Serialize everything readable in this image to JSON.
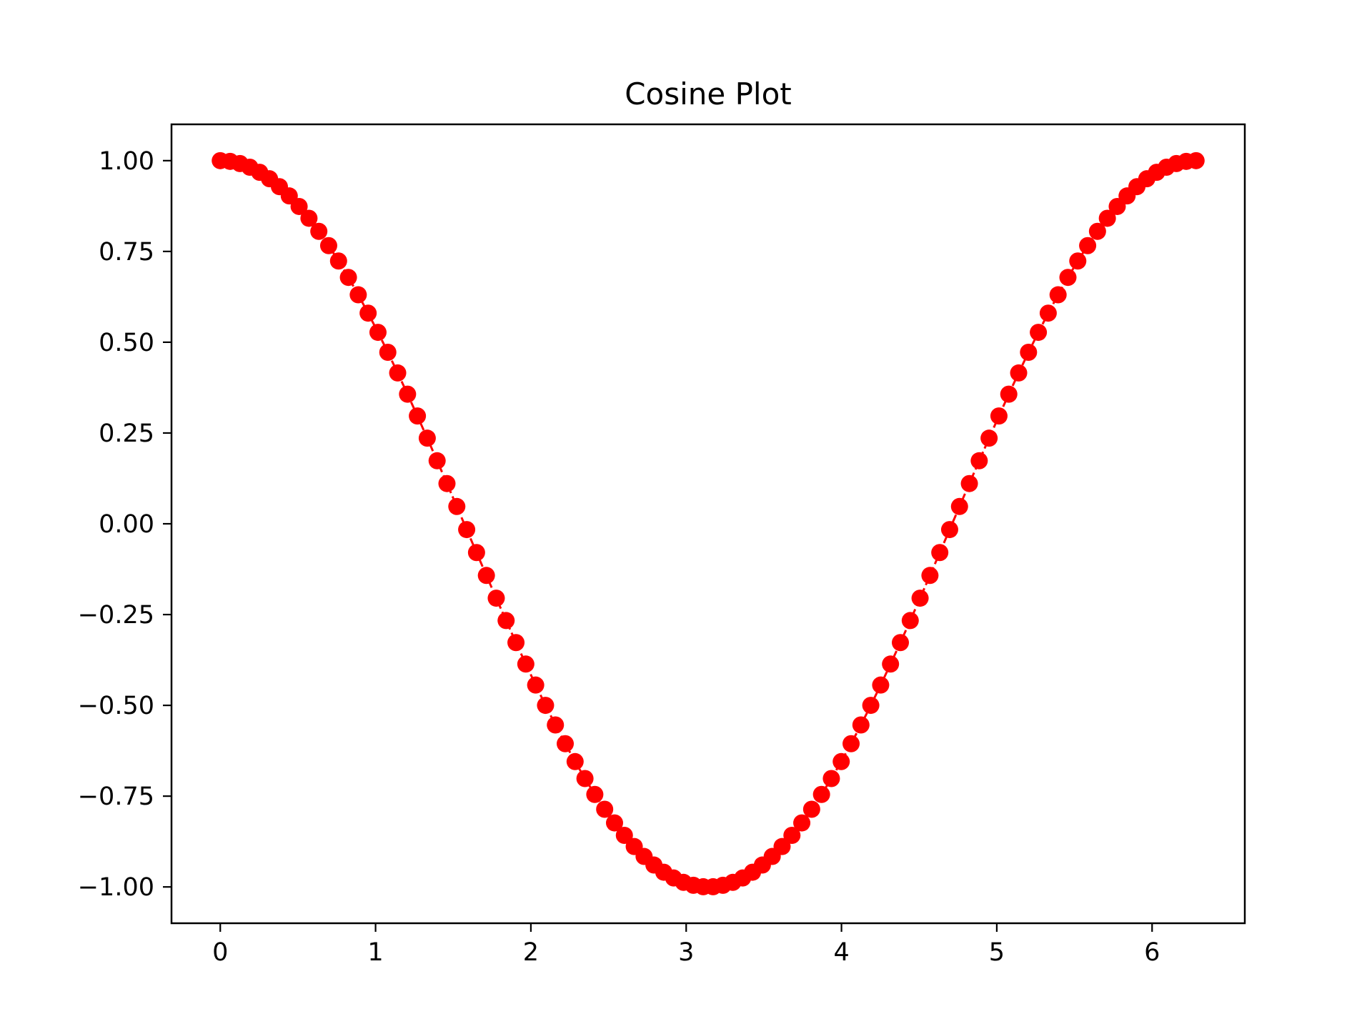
{
  "chart_data": {
    "type": "line",
    "title": "Cosine Plot",
    "xlabel": "",
    "ylabel": "",
    "xlim": [
      -0.314,
      6.597
    ],
    "ylim": [
      -1.1,
      1.1
    ],
    "x_ticks": [
      0,
      1,
      2,
      3,
      4,
      5,
      6
    ],
    "x_tick_labels": [
      "0",
      "1",
      "2",
      "3",
      "4",
      "5",
      "6"
    ],
    "y_ticks": [
      1.0,
      0.75,
      0.5,
      0.25,
      0.0,
      -0.25,
      -0.5,
      -0.75,
      -1.0
    ],
    "y_tick_labels": [
      "1.00",
      "0.75",
      "0.50",
      "0.25",
      "0.00",
      "−0.25",
      "−0.50",
      "−0.75",
      "−1.00"
    ],
    "grid": false,
    "legend": null,
    "series": [
      {
        "color": "#ff0000",
        "marker": "circle",
        "line_style": "dashed",
        "x": [
          0.0,
          0.0635,
          0.1269,
          0.1904,
          0.2539,
          0.3173,
          0.3808,
          0.4443,
          0.5077,
          0.5712,
          0.6347,
          0.6981,
          0.7616,
          0.8251,
          0.8885,
          0.952,
          1.0155,
          1.0789,
          1.1424,
          1.2059,
          1.2693,
          1.3328,
          1.3963,
          1.4597,
          1.5232,
          1.5867,
          1.6501,
          1.7136,
          1.7771,
          1.8405,
          1.904,
          1.9675,
          2.0309,
          2.0944,
          2.1579,
          2.2213,
          2.2848,
          2.3483,
          2.4117,
          2.4752,
          2.5387,
          2.6021,
          2.6656,
          2.7291,
          2.7925,
          2.856,
          2.9195,
          2.9829,
          3.0464,
          3.1099,
          3.1733,
          3.2368,
          3.3003,
          3.3637,
          3.4272,
          3.4907,
          3.5541,
          3.6176,
          3.6811,
          3.7445,
          3.808,
          3.8715,
          3.9349,
          3.9984,
          4.0619,
          4.1253,
          4.1888,
          4.2523,
          4.3157,
          4.3792,
          4.4427,
          4.5061,
          4.5696,
          4.6331,
          4.6965,
          4.76,
          4.8235,
          4.8869,
          4.9504,
          5.0139,
          5.0773,
          5.1408,
          5.2043,
          5.2677,
          5.3312,
          5.3947,
          5.4581,
          5.5216,
          5.5851,
          5.6485,
          5.712,
          5.7755,
          5.8389,
          5.9024,
          5.9659,
          6.0293,
          6.0928,
          6.1563,
          6.2197,
          6.2832
        ],
        "y": [
          1.0,
          0.998,
          0.992,
          0.9819,
          0.9679,
          0.9501,
          0.9284,
          0.9029,
          0.8738,
          0.8413,
          0.8053,
          0.766,
          0.7237,
          0.6785,
          0.6306,
          0.5801,
          0.5272,
          0.4723,
          0.4154,
          0.3569,
          0.2969,
          0.2358,
          0.1736,
          0.1108,
          0.0476,
          -0.0159,
          -0.0792,
          -0.1423,
          -0.2048,
          -0.2665,
          -0.3271,
          -0.3863,
          -0.4441,
          -0.5,
          -0.5539,
          -0.6056,
          -0.6549,
          -0.7015,
          -0.7453,
          -0.7861,
          -0.8237,
          -0.858,
          -0.8888,
          -0.9161,
          -0.9397,
          -0.9595,
          -0.9754,
          -0.9874,
          -0.9955,
          -0.9995,
          -0.9995,
          -0.9955,
          -0.9874,
          -0.9754,
          -0.9595,
          -0.9397,
          -0.9161,
          -0.8888,
          -0.858,
          -0.8237,
          -0.7861,
          -0.7453,
          -0.7015,
          -0.6549,
          -0.6056,
          -0.5539,
          -0.5,
          -0.4441,
          -0.3863,
          -0.3271,
          -0.2665,
          -0.2048,
          -0.1423,
          -0.0792,
          -0.0159,
          0.0476,
          0.1108,
          0.1736,
          0.2358,
          0.2969,
          0.3569,
          0.4154,
          0.4723,
          0.5272,
          0.5801,
          0.6306,
          0.6785,
          0.7237,
          0.766,
          0.8053,
          0.8413,
          0.8738,
          0.9029,
          0.9284,
          0.9501,
          0.9679,
          0.9819,
          0.992,
          0.998,
          1.0
        ]
      }
    ]
  }
}
